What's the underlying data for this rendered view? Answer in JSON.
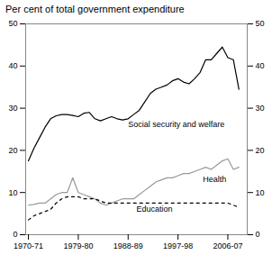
{
  "chart_data": {
    "type": "line",
    "title": "Per cent of total government expenditure",
    "x": [
      1970,
      1971,
      1972,
      1973,
      1974,
      1975,
      1976,
      1977,
      1978,
      1979,
      1980,
      1981,
      1982,
      1983,
      1984,
      1985,
      1986,
      1987,
      1988,
      1989,
      1990,
      1991,
      1992,
      1993,
      1994,
      1995,
      1996,
      1997,
      1998,
      1999,
      2000,
      2001,
      2002,
      2003,
      2004,
      2005,
      2006,
      2007,
      2008
    ],
    "series": [
      {
        "color": "#000000",
        "line_style": "solid",
        "values": [
          17.5,
          20.5,
          23.0,
          25.5,
          27.5,
          28.2,
          28.5,
          28.5,
          28.3,
          28.0,
          28.8,
          29.0,
          27.5,
          27.0,
          27.5,
          28.0,
          27.5,
          27.2,
          27.5,
          28.5,
          29.5,
          31.5,
          33.5,
          34.5,
          35.0,
          35.5,
          36.5,
          37.0,
          36.2,
          35.8,
          37.0,
          38.5,
          41.5,
          41.5,
          43.0,
          44.5,
          42.0,
          41.5,
          34.5
        ]
      },
      {
        "color": "#999999",
        "line_style": "solid",
        "values": [
          7.0,
          7.2,
          7.5,
          7.5,
          8.5,
          9.5,
          10.0,
          10.0,
          13.5,
          10.0,
          9.5,
          9.0,
          8.5,
          7.5,
          7.0,
          7.5,
          8.0,
          8.5,
          8.5,
          8.5,
          9.5,
          10.5,
          11.5,
          12.5,
          13.0,
          13.5,
          13.5,
          14.0,
          14.5,
          14.5,
          15.0,
          15.5,
          16.0,
          15.5,
          16.5,
          17.5,
          18.0,
          15.5,
          16.0
        ]
      },
      {
        "color": "#000000",
        "line_style": "dashed",
        "values": [
          3.5,
          4.5,
          5.0,
          5.5,
          6.0,
          7.5,
          8.5,
          9.0,
          9.0,
          9.0,
          8.5,
          8.5,
          8.5,
          8.0,
          7.5,
          7.5,
          7.5,
          7.5,
          7.5,
          7.5,
          7.5,
          7.5,
          7.5,
          7.5,
          7.5,
          7.5,
          7.5,
          7.5,
          7.5,
          7.5,
          7.5,
          7.5,
          7.5,
          7.5,
          7.5,
          7.5,
          7.5,
          7.0,
          6.5
        ]
      }
    ],
    "xlim": [
      1969.5,
      2009.5
    ],
    "xticks": [
      {
        "value": 1970,
        "label": "1970-71"
      },
      {
        "value": 1979,
        "label": "1979-80"
      },
      {
        "value": 1988,
        "label": "1988-89"
      },
      {
        "value": 1997,
        "label": "1997-98"
      },
      {
        "value": 2006,
        "label": "2006-07"
      }
    ],
    "ylim": [
      0,
      50
    ],
    "yticks": [
      0,
      10,
      20,
      30,
      40,
      50
    ],
    "annotations": [
      {
        "text": "Social security and welfare",
        "x": 1988,
        "y": 25.5
      },
      {
        "text": "Health",
        "x": 2001.5,
        "y": 12.5
      },
      {
        "text": "Education",
        "x": 1989.5,
        "y": 5.5
      }
    ],
    "grid": false
  }
}
